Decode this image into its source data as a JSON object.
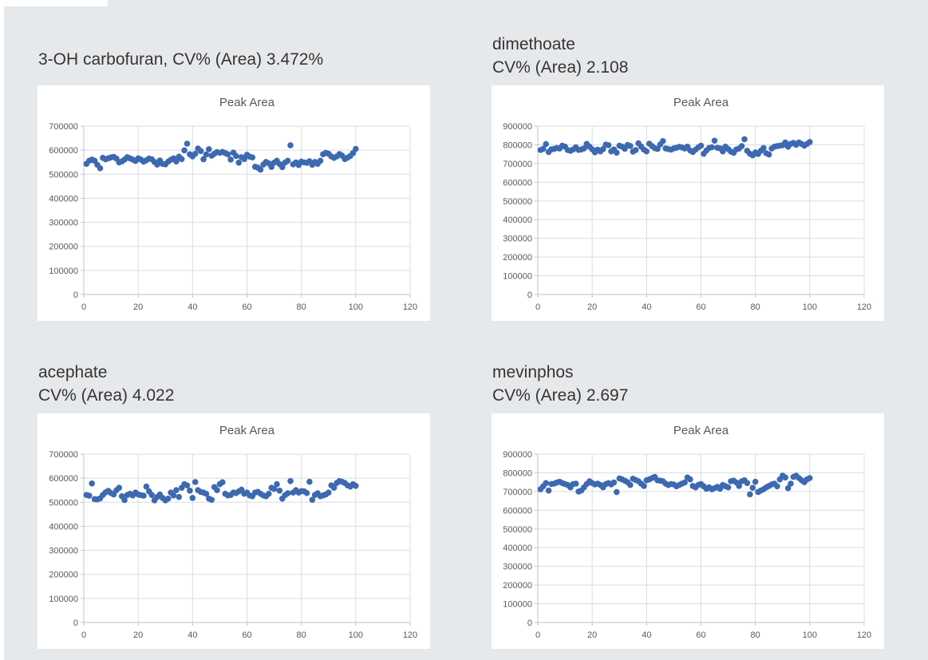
{
  "page": {
    "background_color": "#e6e9ec",
    "card_color": "#ffffff",
    "accent_color": "#3d69b1"
  },
  "panels": [
    {
      "heading_lines": [
        "3-OH carbofuran, CV% (Area) 3.472%"
      ]
    },
    {
      "heading_lines": [
        "dimethoate",
        "CV% (Area) 2.108"
      ]
    },
    {
      "heading_lines": [
        "acephate",
        "CV% (Area) 4.022"
      ]
    },
    {
      "heading_lines": [
        "mevinphos",
        "CV% (Area) 2.697"
      ]
    }
  ],
  "chart_data": [
    {
      "type": "scatter",
      "title": "Peak Area",
      "analyte": "3-OH carbofuran",
      "cv_percent_area": "3.472%",
      "xlim": [
        0,
        120
      ],
      "ylim": [
        0,
        700000
      ],
      "x_ticks": [
        0,
        20,
        40,
        60,
        80,
        100,
        120
      ],
      "y_ticks": [
        0,
        100000,
        200000,
        300000,
        400000,
        500000,
        600000,
        700000
      ],
      "grid": true,
      "legend": "none",
      "marker_color": "#3d69b1",
      "x_series": {
        "start": 1,
        "step": 1,
        "count": 100
      },
      "y": [
        543000,
        556000,
        561000,
        556000,
        539000,
        525000,
        568000,
        562000,
        566000,
        570000,
        572000,
        565000,
        549000,
        553000,
        561000,
        571000,
        566000,
        561000,
        555000,
        566000,
        561000,
        552000,
        558000,
        565000,
        562000,
        551000,
        540000,
        557000,
        543000,
        541000,
        552000,
        560000,
        566000,
        553000,
        573000,
        563000,
        599000,
        627000,
        583000,
        574000,
        585000,
        607000,
        596000,
        562000,
        582000,
        604000,
        577000,
        585000,
        592000,
        589000,
        593000,
        588000,
        583000,
        561000,
        590000,
        576000,
        548000,
        571000,
        563000,
        581000,
        573000,
        570000,
        531000,
        527000,
        519000,
        540000,
        551000,
        545000,
        530000,
        548000,
        556000,
        542000,
        529000,
        548000,
        556000,
        620000,
        541000,
        549000,
        538000,
        552000,
        549000,
        547000,
        554000,
        539000,
        551000,
        543000,
        556000,
        583000,
        589000,
        585000,
        574000,
        568000,
        574000,
        584000,
        577000,
        563000,
        569000,
        576000,
        588000,
        605000
      ]
    },
    {
      "type": "scatter",
      "title": "Peak Area",
      "analyte": "dimethoate",
      "cv_percent_area": "2.108",
      "xlim": [
        0,
        120
      ],
      "ylim": [
        0,
        900000
      ],
      "x_ticks": [
        0,
        20,
        40,
        60,
        80,
        100,
        120
      ],
      "y_ticks": [
        0,
        100000,
        200000,
        300000,
        400000,
        500000,
        600000,
        700000,
        800000,
        900000
      ],
      "grid": true,
      "legend": "none",
      "marker_color": "#3d69b1",
      "x_series": {
        "start": 1,
        "step": 1,
        "count": 100
      },
      "y": [
        772000,
        779000,
        804000,
        762000,
        776000,
        778000,
        783000,
        780000,
        795000,
        790000,
        772000,
        768000,
        775000,
        787000,
        773000,
        775000,
        781000,
        805000,
        790000,
        776000,
        760000,
        774000,
        765000,
        777000,
        801000,
        798000,
        765000,
        775000,
        758000,
        795000,
        790000,
        779000,
        799000,
        794000,
        764000,
        772000,
        808000,
        791000,
        774000,
        765000,
        806000,
        793000,
        782000,
        778000,
        802000,
        820000,
        781000,
        777000,
        774000,
        781000,
        784000,
        789000,
        786000,
        780000,
        790000,
        770000,
        762000,
        774000,
        786000,
        795000,
        752000,
        770000,
        783000,
        787000,
        822000,
        784000,
        781000,
        765000,
        790000,
        777000,
        764000,
        757000,
        775000,
        780000,
        793000,
        830000,
        768000,
        752000,
        744000,
        759000,
        751000,
        768000,
        783000,
        755000,
        748000,
        780000,
        790000,
        793000,
        795000,
        798000,
        812000,
        790000,
        805000,
        810000,
        800000,
        812000,
        805000,
        795000,
        805000,
        815000
      ]
    },
    {
      "type": "scatter",
      "title": "Peak Area",
      "analyte": "acephate",
      "cv_percent_area": "4.022",
      "xlim": [
        0,
        120
      ],
      "ylim": [
        0,
        700000
      ],
      "x_ticks": [
        0,
        20,
        40,
        60,
        80,
        100,
        120
      ],
      "y_ticks": [
        0,
        100000,
        200000,
        300000,
        400000,
        500000,
        600000,
        700000
      ],
      "grid": true,
      "legend": "none",
      "marker_color": "#3d69b1",
      "x_series": {
        "start": 1,
        "step": 1,
        "count": 100
      },
      "y": [
        530000,
        527000,
        578000,
        513000,
        512000,
        516000,
        530000,
        541000,
        547000,
        538000,
        532000,
        550000,
        560000,
        525000,
        509000,
        530000,
        535000,
        528000,
        540000,
        532000,
        529000,
        527000,
        565000,
        545000,
        530000,
        508000,
        522000,
        532000,
        518000,
        508000,
        515000,
        540000,
        528000,
        550000,
        522000,
        560000,
        575000,
        570000,
        548000,
        518000,
        584000,
        550000,
        543000,
        540000,
        535000,
        515000,
        510000,
        563000,
        550000,
        575000,
        583000,
        535000,
        528000,
        530000,
        540000,
        538000,
        545000,
        552000,
        535000,
        540000,
        528000,
        525000,
        540000,
        543000,
        535000,
        528000,
        525000,
        535000,
        560000,
        555000,
        575000,
        548000,
        515000,
        529000,
        537000,
        588000,
        540000,
        550000,
        540000,
        546000,
        545000,
        538000,
        585000,
        510000,
        530000,
        537000,
        525000,
        528000,
        532000,
        540000,
        570000,
        560000,
        580000,
        588000,
        585000,
        580000,
        570000,
        565000,
        575000,
        568000
      ]
    },
    {
      "type": "scatter",
      "title": "Peak Area",
      "analyte": "mevinphos",
      "cv_percent_area": "2.697",
      "xlim": [
        0,
        120
      ],
      "ylim": [
        0,
        900000
      ],
      "x_ticks": [
        0,
        20,
        40,
        60,
        80,
        100,
        120
      ],
      "y_ticks": [
        0,
        100000,
        200000,
        300000,
        400000,
        500000,
        600000,
        700000,
        800000,
        900000
      ],
      "grid": true,
      "legend": "none",
      "marker_color": "#3d69b1",
      "x_series": {
        "start": 1,
        "step": 1,
        "count": 100
      },
      "y": [
        712000,
        728000,
        745000,
        705000,
        740000,
        742000,
        748000,
        752000,
        745000,
        740000,
        735000,
        722000,
        740000,
        742000,
        700000,
        705000,
        722000,
        740000,
        755000,
        745000,
        738000,
        742000,
        735000,
        722000,
        740000,
        745000,
        738000,
        748000,
        697000,
        770000,
        765000,
        758000,
        750000,
        735000,
        768000,
        762000,
        755000,
        742000,
        730000,
        760000,
        765000,
        772000,
        778000,
        760000,
        758000,
        755000,
        742000,
        735000,
        740000,
        738000,
        728000,
        735000,
        742000,
        748000,
        775000,
        765000,
        730000,
        722000,
        735000,
        740000,
        728000,
        715000,
        722000,
        712000,
        718000,
        725000,
        715000,
        735000,
        728000,
        722000,
        755000,
        758000,
        748000,
        730000,
        755000,
        760000,
        745000,
        685000,
        720000,
        752000,
        698000,
        705000,
        712000,
        722000,
        730000,
        738000,
        742000,
        728000,
        765000,
        785000,
        775000,
        718000,
        742000,
        778000,
        785000,
        772000,
        760000,
        750000,
        765000,
        772000
      ]
    }
  ]
}
